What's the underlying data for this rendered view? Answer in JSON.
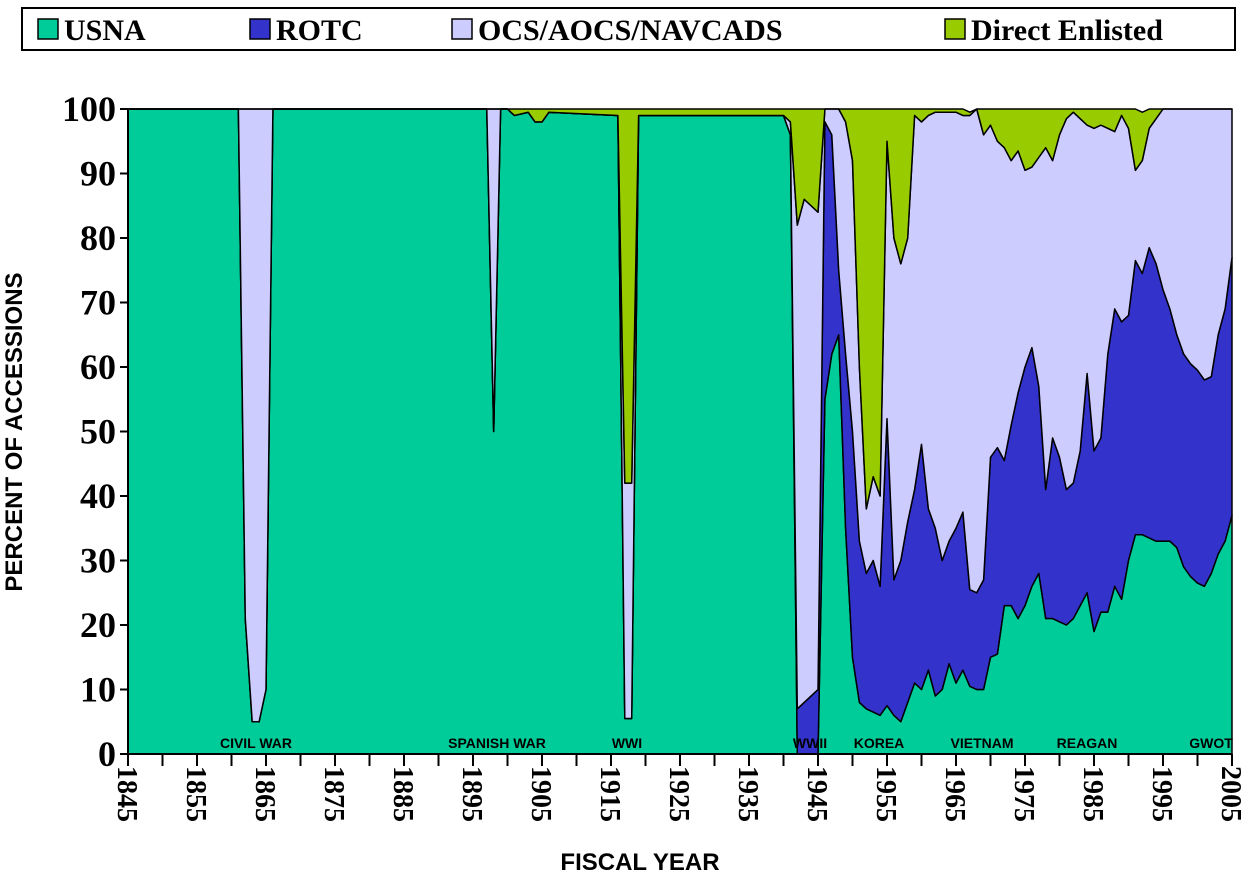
{
  "chart_data": {
    "type": "stacked_area",
    "legend": "top",
    "xlabel": "FISCAL YEAR",
    "ylabel": "PERCENT OF ACCESSIONS",
    "xlim": [
      1845,
      2005
    ],
    "ylim": [
      0,
      100
    ],
    "xticks": [
      1845,
      1855,
      1865,
      1875,
      1885,
      1895,
      1905,
      1915,
      1925,
      1935,
      1945,
      1955,
      1965,
      1975,
      1985,
      1995,
      2005
    ],
    "yticks": [
      0,
      10,
      20,
      30,
      40,
      50,
      60,
      70,
      80,
      90,
      100
    ],
    "annotations": [
      "CIVIL WAR",
      "SPANISH WAR",
      "WWI",
      "WWII",
      "KOREA",
      "VIETNAM",
      "REAGAN",
      "GWOT"
    ],
    "x": [
      1845,
      1861,
      1862,
      1863,
      1864,
      1865,
      1866,
      1897,
      1898,
      1899,
      1900,
      1901,
      1903,
      1904,
      1905,
      1906,
      1916,
      1917,
      1918,
      1919,
      1939,
      1940,
      1941,
      1942,
      1943,
      1944,
      1945,
      1946,
      1947,
      1948,
      1949,
      1950,
      1951,
      1952,
      1953,
      1954,
      1955,
      1956,
      1957,
      1958,
      1959,
      1960,
      1961,
      1962,
      1963,
      1964,
      1965,
      1966,
      1967,
      1968,
      1969,
      1970,
      1971,
      1972,
      1973,
      1974,
      1975,
      1976,
      1977,
      1978,
      1979,
      1980,
      1981,
      1982,
      1983,
      1984,
      1985,
      1986,
      1987,
      1988,
      1989,
      1990,
      1991,
      1992,
      1993,
      1994,
      1995,
      1996,
      1997,
      1998,
      1999,
      2000,
      2001,
      2002,
      2003,
      2004,
      2005
    ],
    "series": [
      {
        "name": "USNA",
        "color": "#00cc99",
        "values": [
          100,
          100,
          21,
          5,
          5,
          10,
          100,
          100,
          50,
          100,
          100,
          99,
          99.5,
          98,
          98,
          99.5,
          99,
          5.5,
          5.5,
          99,
          99,
          99,
          96,
          0,
          0,
          0,
          0,
          55,
          62,
          65,
          35,
          15,
          8,
          7,
          6.5,
          6,
          7.5,
          6,
          5,
          8,
          11,
          10,
          13,
          9,
          10,
          14,
          11,
          13,
          10.5,
          10,
          10,
          15,
          15.5,
          23,
          23,
          21,
          23,
          26,
          28,
          21,
          21,
          20.5,
          20,
          21,
          23,
          25,
          19,
          22,
          22,
          26,
          24,
          30,
          34,
          34,
          33.5,
          33,
          33,
          33,
          32,
          29,
          27.5,
          26.5,
          26,
          28,
          31,
          33,
          37
        ]
      },
      {
        "name": "ROTC",
        "color": "#3333cc",
        "values": [
          0,
          0,
          0,
          0,
          0,
          0,
          0,
          0,
          0,
          0,
          0,
          0,
          0,
          0,
          0,
          0,
          0,
          0,
          0,
          0,
          0,
          0,
          0,
          7,
          8,
          9,
          10,
          43,
          34,
          10,
          27,
          35,
          25,
          21,
          23.5,
          20,
          44.5,
          21,
          25,
          28,
          30,
          38,
          25,
          26,
          20,
          19,
          24,
          24.5,
          15,
          15,
          17,
          31,
          32,
          22.5,
          28,
          35,
          37,
          37,
          29,
          20,
          28,
          25.5,
          21,
          21,
          24,
          34,
          28,
          27,
          40,
          43,
          43,
          38,
          42.5,
          40.5,
          45,
          43,
          39,
          36,
          33,
          33,
          33,
          33,
          32,
          30.5,
          34,
          36,
          40
        ]
      },
      {
        "name": "OCS/AOCS/NAVCADS",
        "color": "#ccccff",
        "values": [
          0,
          0,
          79,
          95,
          95,
          90,
          0,
          0,
          50,
          0,
          0,
          0,
          0,
          0,
          0,
          0,
          0,
          36.5,
          36.5,
          0,
          0,
          0,
          2,
          75,
          78,
          76,
          74,
          2,
          4,
          25,
          36,
          42,
          27,
          10,
          13,
          14,
          43,
          53,
          46,
          44,
          58,
          50,
          61,
          64.5,
          69.5,
          66.5,
          64.5,
          61.5,
          73.5,
          75,
          69,
          51.5,
          47.5,
          48.5,
          41,
          37.5,
          30.5,
          28,
          35.5,
          53,
          43,
          50,
          57.5,
          57.5,
          51.5,
          38.5,
          50,
          48.5,
          35,
          27.5,
          32,
          29,
          14,
          17.5,
          18.5,
          22.5,
          28,
          31,
          35,
          38,
          39.5,
          40.5,
          42,
          41.5,
          35,
          31,
          23
        ]
      },
      {
        "name": "Direct Enlisted",
        "color": "#99cc00",
        "values": [
          0,
          0,
          0,
          0,
          0,
          0,
          0,
          0,
          0,
          0,
          0,
          1,
          0.5,
          2,
          2,
          0.5,
          1,
          58,
          58,
          1,
          1,
          1,
          2,
          18,
          14,
          15,
          16,
          0,
          0,
          0,
          2,
          8,
          40,
          62,
          57,
          60,
          5,
          20,
          24,
          20,
          1,
          2,
          1,
          0.5,
          0.5,
          0.5,
          0.5,
          1,
          0.5,
          0,
          4,
          2.5,
          5,
          6,
          8,
          6.5,
          9.5,
          9,
          7.5,
          6,
          8,
          4,
          1.5,
          0.5,
          1.5,
          2.5,
          3,
          2.5,
          3,
          3.5,
          1,
          3,
          9.5,
          7.5,
          3,
          1.5,
          0,
          0,
          0,
          0,
          0,
          0,
          0,
          0,
          0,
          0,
          0
        ]
      }
    ]
  }
}
